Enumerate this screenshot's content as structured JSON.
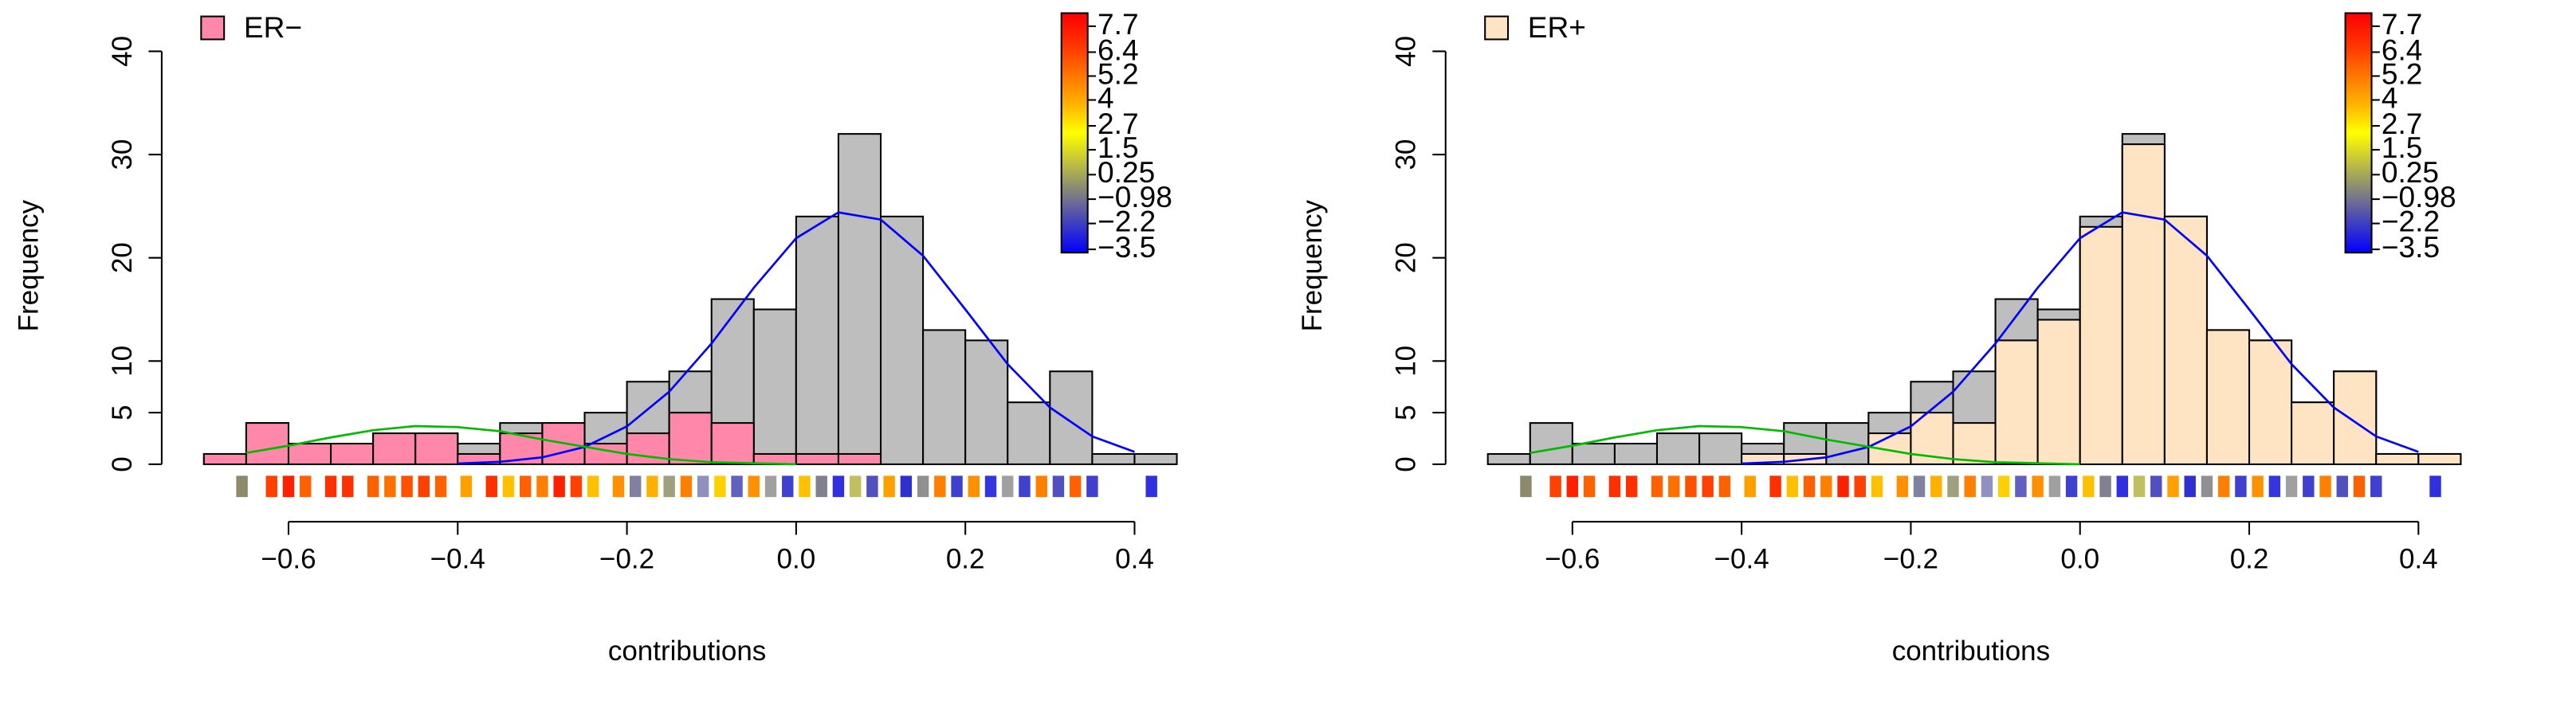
{
  "chart_data": [
    {
      "type": "histogram",
      "xlabel": "contributions",
      "ylabel": "Frequency",
      "bins": [
        -0.7,
        -0.65,
        -0.6,
        -0.55,
        -0.5,
        -0.45,
        -0.4,
        -0.35,
        -0.3,
        -0.25,
        -0.2,
        -0.15,
        -0.1,
        -0.05,
        0,
        0.05,
        0.1,
        0.15,
        0.2,
        0.25,
        0.3,
        0.35,
        0.4,
        0.45
      ],
      "background": {
        "color": "#bebebe",
        "values": [
          1,
          4,
          2,
          2,
          3,
          3,
          2,
          4,
          4,
          5,
          8,
          9,
          16,
          15,
          24,
          32,
          24,
          13,
          12,
          6,
          9,
          1,
          1
        ]
      },
      "series": [
        {
          "name": "ER−",
          "color": "#ff88aa",
          "values": [
            1,
            4,
            2,
            2,
            3,
            3,
            1,
            3,
            4,
            2,
            3,
            5,
            4,
            1,
            1,
            1,
            0,
            0,
            0,
            0,
            0,
            0,
            0
          ]
        }
      ],
      "curves": [
        {
          "color": "#0000ff",
          "x": [
            -0.4,
            -0.35,
            -0.3,
            -0.25,
            -0.2,
            -0.15,
            -0.1,
            -0.05,
            0,
            0.05,
            0.1,
            0.15,
            0.2,
            0.25,
            0.3,
            0.35,
            0.4
          ],
          "values": [
            0.07,
            0.24,
            0.67,
            1.68,
            3.67,
            7.03,
            11.7,
            17.1,
            21.9,
            24.4,
            23.7,
            20.2,
            15.0,
            9.7,
            5.5,
            2.7,
            1.2
          ]
        },
        {
          "color": "#00bb00",
          "x": [
            -0.65,
            -0.6,
            -0.55,
            -0.5,
            -0.45,
            -0.4,
            -0.35,
            -0.3,
            -0.25,
            -0.2,
            -0.15,
            -0.1,
            -0.05,
            0
          ],
          "values": [
            1.1,
            1.8,
            2.6,
            3.3,
            3.7,
            3.6,
            3.2,
            2.4,
            1.7,
            1.0,
            0.5,
            0.2,
            0.1,
            0.0
          ]
        }
      ],
      "rug": {
        "x": [
          -0.655,
          -0.62,
          -0.6,
          -0.58,
          -0.55,
          -0.53,
          -0.5,
          -0.48,
          -0.46,
          -0.44,
          -0.42,
          -0.39,
          -0.36,
          -0.34,
          -0.32,
          -0.3,
          -0.28,
          -0.26,
          -0.24,
          -0.21,
          -0.19,
          -0.17,
          -0.15,
          -0.13,
          -0.11,
          -0.09,
          -0.07,
          -0.05,
          -0.03,
          -0.01,
          0.01,
          0.03,
          0.05,
          0.07,
          0.09,
          0.11,
          0.13,
          0.15,
          0.17,
          0.19,
          0.21,
          0.23,
          0.25,
          0.27,
          0.29,
          0.31,
          0.33,
          0.35,
          0.42
        ],
        "colors": [
          "#8b8b6b",
          "#ff4000",
          "#ff2000",
          "#ff6000",
          "#ff3000",
          "#ff3000",
          "#ff6000",
          "#ff7000",
          "#ff5000",
          "#ff4000",
          "#ff6000",
          "#ffa000",
          "#ff3000",
          "#ffc000",
          "#ff6000",
          "#ff8000",
          "#ff2000",
          "#ff4000",
          "#ffc000",
          "#ff9000",
          "#8080a0",
          "#ffb000",
          "#a0a080",
          "#ff8000",
          "#9090c0",
          "#ffd000",
          "#6060c0",
          "#ff9000",
          "#a0a0a0",
          "#4040d0",
          "#ffc000",
          "#808090",
          "#3030e0",
          "#c0c060",
          "#5050c0",
          "#ffa000",
          "#3030d0",
          "#909090",
          "#ff8000",
          "#4040d0",
          "#ff9000",
          "#3535e0",
          "#a0a0a0",
          "#4040d0",
          "#ff8000",
          "#5050c0",
          "#ff6000",
          "#4040d0",
          "#3030e0"
        ]
      },
      "xlim": [
        -0.746,
        0.496
      ],
      "ylim": [
        0,
        43.7
      ],
      "xticks": [
        {
          "value": -0.6,
          "label": "−0.6"
        },
        {
          "value": -0.4,
          "label": "−0.4"
        },
        {
          "value": -0.2,
          "label": "−0.2"
        },
        {
          "value": 0,
          "label": "0.0"
        },
        0.2,
        0.4
      ],
      "yticks": [
        0,
        5,
        10,
        20,
        30,
        40
      ],
      "colorbar": {
        "colors": [
          "#0000ff",
          "#4040c0",
          "#808080",
          "#c0c040",
          "#ffff00",
          "#ffb000",
          "#ff7000",
          "#ff3000",
          "#ff0000"
        ],
        "lim": [
          -3.5,
          7.7
        ],
        "ticks": [
          7.7,
          6.4,
          5.2,
          4,
          2.7,
          1.5,
          0.25,
          {
            "value": -0.98,
            "label": "−0.98"
          },
          {
            "value": -2.2,
            "label": "−2.2"
          },
          {
            "value": -3.5,
            "label": "−3.5"
          }
        ]
      }
    },
    {
      "type": "histogram",
      "xlabel": "contributions",
      "ylabel": "Frequency",
      "bins": [
        -0.7,
        -0.65,
        -0.6,
        -0.55,
        -0.5,
        -0.45,
        -0.4,
        -0.35,
        -0.3,
        -0.25,
        -0.2,
        -0.15,
        -0.1,
        -0.05,
        0,
        0.05,
        0.1,
        0.15,
        0.2,
        0.25,
        0.3,
        0.35,
        0.4,
        0.45
      ],
      "background": {
        "color": "#bebebe",
        "values": [
          1,
          4,
          2,
          2,
          3,
          3,
          2,
          4,
          4,
          5,
          8,
          9,
          16,
          15,
          24,
          32,
          24,
          13,
          12,
          6,
          9,
          1,
          1
        ]
      },
      "series": [
        {
          "name": "ER+",
          "color": "#ffe4c4",
          "values": [
            0,
            0,
            0,
            0,
            0,
            0,
            1,
            1,
            0,
            3,
            5,
            4,
            12,
            14,
            23,
            31,
            24,
            13,
            12,
            6,
            9,
            1,
            1
          ]
        }
      ],
      "curves": [
        {
          "color": "#0000ff",
          "x": [
            -0.4,
            -0.35,
            -0.3,
            -0.25,
            -0.2,
            -0.15,
            -0.1,
            -0.05,
            0,
            0.05,
            0.1,
            0.15,
            0.2,
            0.25,
            0.3,
            0.35,
            0.4
          ],
          "values": [
            0.07,
            0.24,
            0.67,
            1.68,
            3.67,
            7.03,
            11.7,
            17.1,
            21.9,
            24.4,
            23.7,
            20.2,
            15.0,
            9.7,
            5.5,
            2.7,
            1.2
          ]
        },
        {
          "color": "#00bb00",
          "x": [
            -0.65,
            -0.6,
            -0.55,
            -0.5,
            -0.45,
            -0.4,
            -0.35,
            -0.3,
            -0.25,
            -0.2,
            -0.15,
            -0.1,
            -0.05,
            0
          ],
          "values": [
            1.1,
            1.8,
            2.6,
            3.3,
            3.7,
            3.6,
            3.2,
            2.4,
            1.7,
            1.0,
            0.5,
            0.2,
            0.1,
            0.0
          ]
        }
      ],
      "rug": {
        "x": [
          -0.655,
          -0.62,
          -0.6,
          -0.58,
          -0.55,
          -0.53,
          -0.5,
          -0.48,
          -0.46,
          -0.44,
          -0.42,
          -0.39,
          -0.36,
          -0.34,
          -0.32,
          -0.3,
          -0.28,
          -0.26,
          -0.24,
          -0.21,
          -0.19,
          -0.17,
          -0.15,
          -0.13,
          -0.11,
          -0.09,
          -0.07,
          -0.05,
          -0.03,
          -0.01,
          0.01,
          0.03,
          0.05,
          0.07,
          0.09,
          0.11,
          0.13,
          0.15,
          0.17,
          0.19,
          0.21,
          0.23,
          0.25,
          0.27,
          0.29,
          0.31,
          0.33,
          0.35,
          0.42
        ],
        "colors": [
          "#8b8b6b",
          "#ff4000",
          "#ff2000",
          "#ff6000",
          "#ff3000",
          "#ff3000",
          "#ff6000",
          "#ff7000",
          "#ff5000",
          "#ff4000",
          "#ff6000",
          "#ffa000",
          "#ff3000",
          "#ffc000",
          "#ff6000",
          "#ff8000",
          "#ff2000",
          "#ff4000",
          "#ffc000",
          "#ff9000",
          "#8080a0",
          "#ffb000",
          "#a0a080",
          "#ff8000",
          "#9090c0",
          "#ffd000",
          "#6060c0",
          "#ff9000",
          "#a0a0a0",
          "#4040d0",
          "#ffc000",
          "#808090",
          "#3030e0",
          "#c0c060",
          "#5050c0",
          "#ffa000",
          "#3030d0",
          "#909090",
          "#ff8000",
          "#4040d0",
          "#ff9000",
          "#3535e0",
          "#a0a0a0",
          "#4040d0",
          "#ff8000",
          "#5050c0",
          "#ff6000",
          "#4040d0",
          "#3030e0"
        ]
      },
      "xlim": [
        -0.746,
        0.496
      ],
      "ylim": [
        0,
        43.7
      ],
      "xticks": [
        {
          "value": -0.6,
          "label": "−0.6"
        },
        {
          "value": -0.4,
          "label": "−0.4"
        },
        {
          "value": -0.2,
          "label": "−0.2"
        },
        {
          "value": 0,
          "label": "0.0"
        },
        0.2,
        0.4
      ],
      "yticks": [
        0,
        5,
        10,
        20,
        30,
        40
      ],
      "colorbar": {
        "colors": [
          "#0000ff",
          "#4040c0",
          "#808080",
          "#c0c040",
          "#ffff00",
          "#ffb000",
          "#ff7000",
          "#ff3000",
          "#ff0000"
        ],
        "lim": [
          -3.5,
          7.7
        ],
        "ticks": [
          7.7,
          6.4,
          5.2,
          4,
          2.7,
          1.5,
          0.25,
          {
            "value": -0.98,
            "label": "−0.98"
          },
          {
            "value": -2.2,
            "label": "−2.2"
          },
          {
            "value": -3.5,
            "label": "−3.5"
          }
        ]
      }
    }
  ]
}
